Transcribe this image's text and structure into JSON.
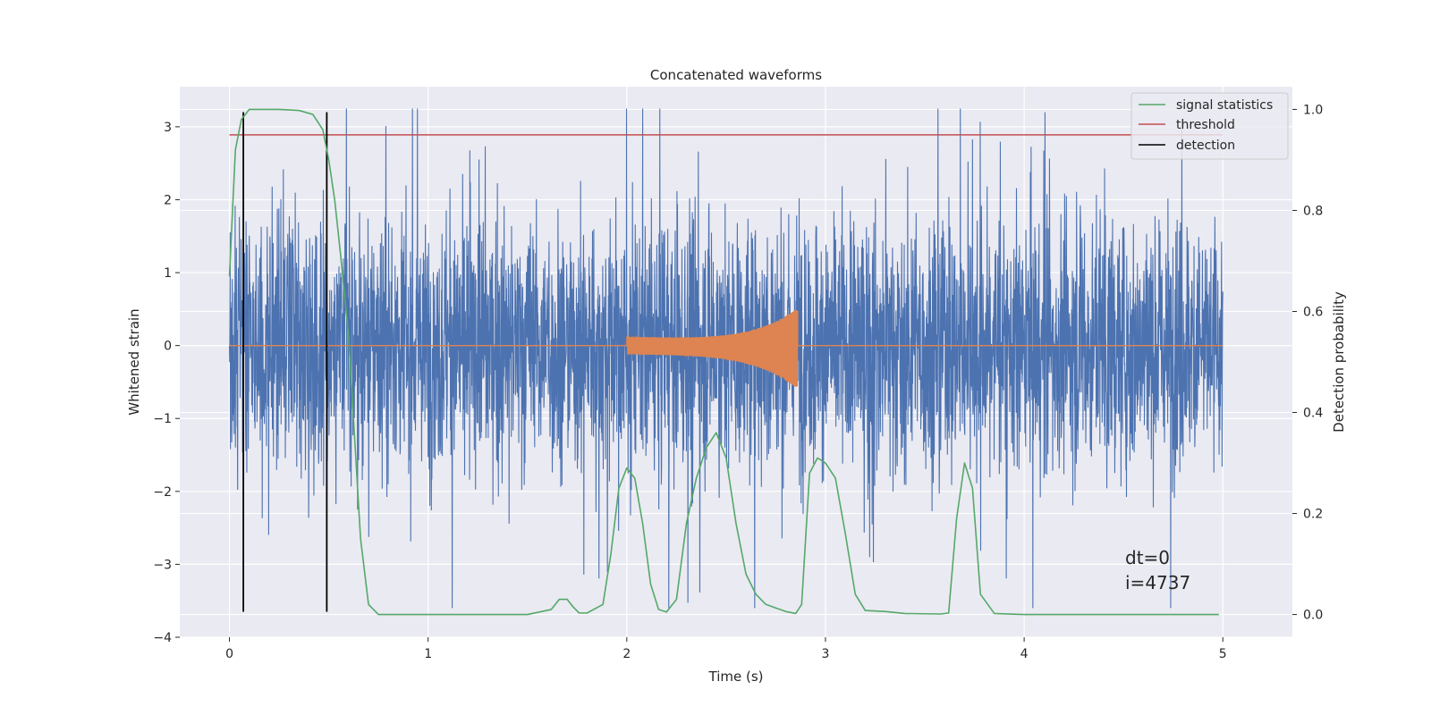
{
  "chart_data": {
    "type": "line",
    "title": "Concatenated waveforms",
    "xlabel": "Time (s)",
    "ylabel": "Whitened strain",
    "y2label": "Detection probability",
    "xlim": [
      -0.25,
      5.35
    ],
    "ylim": [
      -4.0,
      3.55
    ],
    "y2lim": [
      -0.045,
      1.045
    ],
    "xticks": [
      0,
      1,
      2,
      3,
      4,
      5
    ],
    "yticks": [
      -4,
      -3,
      -2,
      -1,
      0,
      1,
      2,
      3
    ],
    "y2ticks": [
      0.0,
      0.2,
      0.4,
      0.6,
      0.8,
      1.0
    ],
    "grid": true,
    "legend_position": "top-right",
    "colors": {
      "strain": "#4c72b0",
      "injection": "#dd8452",
      "statistics": "#55a868",
      "threshold": "#c44e52",
      "detection": "#000000",
      "background": "#eaeaf2",
      "grid": "#ffffff"
    },
    "series": [
      {
        "name": "signal statistics",
        "axis": "right",
        "color": "#55a868",
        "x": [
          0.0,
          0.03,
          0.06,
          0.1,
          0.15,
          0.25,
          0.35,
          0.42,
          0.47,
          0.5,
          0.53,
          0.56,
          0.6,
          0.63,
          0.66,
          0.7,
          0.75,
          1.0,
          1.5,
          1.62,
          1.66,
          1.7,
          1.73,
          1.76,
          1.8,
          1.88,
          1.92,
          1.96,
          2.0,
          2.04,
          2.08,
          2.12,
          2.16,
          2.2,
          2.25,
          2.3,
          2.35,
          2.4,
          2.45,
          2.5,
          2.55,
          2.6,
          2.65,
          2.7,
          2.75,
          2.8,
          2.85,
          2.88,
          2.92,
          2.96,
          3.0,
          3.05,
          3.1,
          3.15,
          3.2,
          3.3,
          3.4,
          3.58,
          3.62,
          3.66,
          3.7,
          3.74,
          3.78,
          3.85,
          4.0,
          4.5,
          4.98
        ],
        "values": [
          0.67,
          0.92,
          0.98,
          1.0,
          1.0,
          1.0,
          0.998,
          0.99,
          0.96,
          0.9,
          0.82,
          0.71,
          0.55,
          0.35,
          0.15,
          0.02,
          0.0,
          0.0,
          0.0,
          0.01,
          0.03,
          0.03,
          0.015,
          0.003,
          0.003,
          0.02,
          0.12,
          0.25,
          0.29,
          0.27,
          0.18,
          0.06,
          0.01,
          0.005,
          0.03,
          0.18,
          0.27,
          0.33,
          0.36,
          0.31,
          0.18,
          0.08,
          0.04,
          0.02,
          0.013,
          0.006,
          0.002,
          0.02,
          0.28,
          0.31,
          0.3,
          0.27,
          0.16,
          0.04,
          0.008,
          0.006,
          0.002,
          0.001,
          0.003,
          0.19,
          0.3,
          0.25,
          0.04,
          0.002,
          0.0,
          0.0,
          0.0
        ]
      },
      {
        "name": "threshold",
        "axis": "left",
        "color": "#c44e52",
        "x": [
          0.0,
          5.0
        ],
        "values": [
          2.89,
          2.89
        ]
      },
      {
        "name": "detection",
        "axis": "left",
        "color": "#000000",
        "x": [
          0.07,
          0.49
        ],
        "values": [
          3.2,
          3.2
        ],
        "ymin": -3.65
      }
    ],
    "injection": {
      "t_start": 2.0,
      "t_end": 2.86,
      "amp_start": 0.12,
      "amp_end": 0.55,
      "color": "#dd8452"
    },
    "annotations": [
      "dt=0",
      "i=4737"
    ]
  }
}
